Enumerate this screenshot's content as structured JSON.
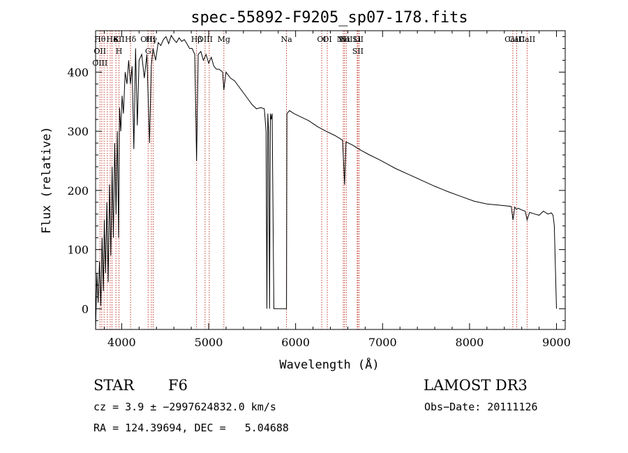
{
  "chart_data": {
    "type": "line",
    "title": "spec-55892-F9205_sp07-178.fits",
    "xlabel": "Wavelength (Å)",
    "ylabel": "Flux (relative)",
    "xlim": [
      3700,
      9100
    ],
    "ylim": [
      -35,
      470
    ],
    "xticks": [
      4000,
      5000,
      6000,
      7000,
      8000,
      9000
    ],
    "yticks": [
      0,
      100,
      200,
      300,
      400
    ],
    "grid": false,
    "series": [
      {
        "x": [
          3700,
          3715,
          3730,
          3745,
          3760,
          3775,
          3790,
          3800,
          3815,
          3830,
          3845,
          3860,
          3875,
          3890,
          3905,
          3920,
          3935,
          3950,
          3965,
          3975,
          3990,
          4005,
          4020,
          4040,
          4060,
          4080,
          4100,
          4120,
          4140,
          4160,
          4180,
          4200,
          4230,
          4260,
          4290,
          4320,
          4340,
          4360,
          4390,
          4420,
          4450,
          4480,
          4510,
          4540,
          4570,
          4600,
          4630,
          4660,
          4690,
          4720,
          4750,
          4780,
          4810,
          4840,
          4861,
          4880,
          4910,
          4940,
          4970,
          5000,
          5030,
          5060,
          5090,
          5120,
          5160,
          5175,
          5200,
          5250,
          5300,
          5350,
          5400,
          5450,
          5500,
          5550,
          5600,
          5640,
          5660,
          5670,
          5680,
          5690,
          5700,
          5710,
          5720,
          5730,
          5750,
          5800,
          5850,
          5880,
          5895,
          5900,
          5930,
          5980,
          6050,
          6150,
          6250,
          6350,
          6450,
          6540,
          6563,
          6580,
          6650,
          6750,
          6850,
          6950,
          7050,
          7150,
          7300,
          7450,
          7600,
          7750,
          7900,
          8050,
          8200,
          8350,
          8480,
          8500,
          8520,
          8540,
          8560,
          8600,
          8640,
          8662,
          8690,
          8750,
          8800,
          8850,
          8900,
          8940,
          8960,
          8975,
          8985,
          9000
        ],
        "values": [
          -35,
          60,
          10,
          80,
          5,
          120,
          30,
          150,
          60,
          180,
          45,
          210,
          90,
          240,
          120,
          280,
          160,
          300,
          120,
          340,
          300,
          360,
          330,
          400,
          380,
          420,
          380,
          410,
          270,
          440,
          310,
          420,
          430,
          390,
          430,
          280,
          410,
          440,
          420,
          450,
          445,
          455,
          460,
          448,
          462,
          455,
          450,
          458,
          452,
          455,
          448,
          440,
          440,
          430,
          250,
          430,
          435,
          420,
          430,
          415,
          425,
          410,
          405,
          405,
          400,
          370,
          400,
          390,
          385,
          375,
          365,
          355,
          345,
          338,
          340,
          338,
          300,
          0,
          330,
          300,
          0,
          330,
          320,
          330,
          0,
          0,
          0,
          0,
          0,
          330,
          335,
          330,
          325,
          318,
          308,
          300,
          293,
          285,
          210,
          282,
          277,
          268,
          260,
          253,
          245,
          237,
          227,
          217,
          207,
          198,
          190,
          182,
          177,
          175,
          173,
          150,
          172,
          168,
          170,
          167,
          165,
          150,
          163,
          160,
          158,
          165,
          160,
          162,
          158,
          140,
          80,
          0
        ]
      }
    ],
    "lines": [
      {
        "x": 3750,
        "labels": [
          "Hθ",
          "OII",
          "OIII"
        ]
      },
      {
        "x": 3771,
        "labels": []
      },
      {
        "x": 3798,
        "labels": []
      },
      {
        "x": 3835,
        "labels": []
      },
      {
        "x": 3868,
        "labels": []
      },
      {
        "x": 3889,
        "labels": [
          "He"
        ]
      },
      {
        "x": 3934,
        "labels": [
          "K"
        ]
      },
      {
        "x": 3969,
        "labels": [
          "SII",
          "H"
        ]
      },
      {
        "x": 4102,
        "labels": [
          "Hδ"
        ]
      },
      {
        "x": 4304,
        "labels": [
          "OIII",
          "G"
        ]
      },
      {
        "x": 4341,
        "labels": [
          "Hγ"
        ]
      },
      {
        "x": 4363,
        "labels": []
      },
      {
        "x": 4861,
        "labels": [
          "Hβ"
        ]
      },
      {
        "x": 4959,
        "labels": [
          "OIII"
        ]
      },
      {
        "x": 5007,
        "labels": []
      },
      {
        "x": 5175,
        "labels": [
          "Mg"
        ]
      },
      {
        "x": 5895,
        "labels": [
          "Na"
        ]
      },
      {
        "x": 6300,
        "labels": [
          "OI"
        ]
      },
      {
        "x": 6364,
        "labels": [
          "OI"
        ]
      },
      {
        "x": 6548,
        "labels": [
          "NII"
        ]
      },
      {
        "x": 6563,
        "labels": [
          "Hα"
        ]
      },
      {
        "x": 6583,
        "labels": [
          "NII"
        ]
      },
      {
        "x": 6708,
        "labels": [
          "Li"
        ]
      },
      {
        "x": 6716,
        "labels": [
          "SII",
          "SII"
        ]
      },
      {
        "x": 6731,
        "labels": []
      },
      {
        "x": 8498,
        "labels": [
          "CaII"
        ]
      },
      {
        "x": 8542,
        "labels": [
          "CaII"
        ]
      },
      {
        "x": 8662,
        "labels": [
          "CaII"
        ]
      }
    ]
  },
  "info": {
    "object": "STAR",
    "subclass": "F6",
    "survey": "LAMOST DR3",
    "cz": "cz = 3.9 ± −2997624832.0 km/s",
    "obs_date": "Obs−Date: 20111126",
    "coords": "RA = 124.39694, DEC =   5.04688"
  },
  "colors": {
    "line_marker": "#c0392b",
    "spectrum": "#000000",
    "axes": "#000000"
  }
}
